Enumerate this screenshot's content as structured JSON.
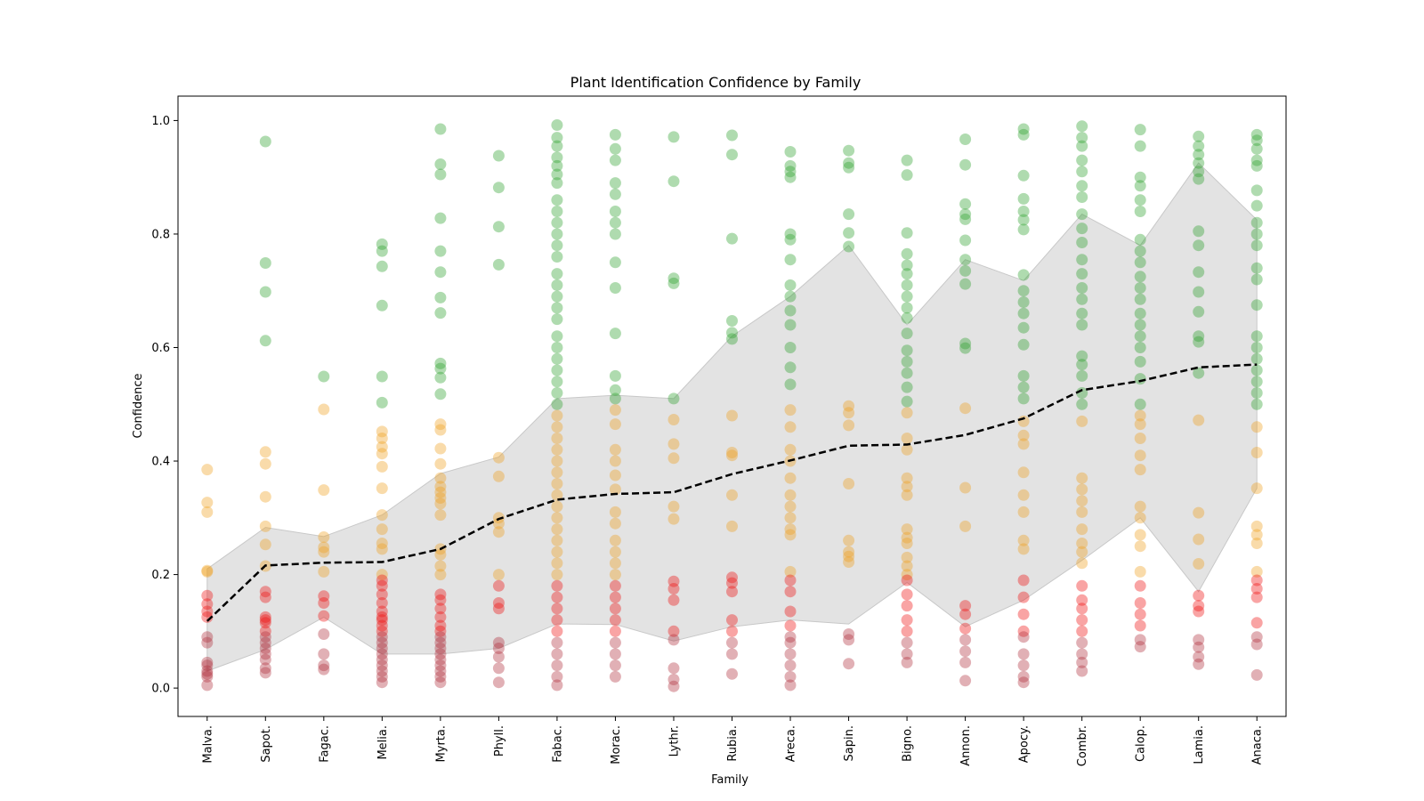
{
  "chart_data": {
    "type": "scatter",
    "title": "Plant Identification Confidence by Family",
    "xlabel": "Family",
    "ylabel": "Confidence",
    "ylim": [
      -0.05,
      1.043
    ],
    "yticks": [
      0.0,
      0.2,
      0.4,
      0.6,
      0.8,
      1.0
    ],
    "ytick_labels": [
      "0.0",
      "0.2",
      "0.4",
      "0.6",
      "0.8",
      "1.0"
    ],
    "categories": [
      "Malva.",
      "Sapot.",
      "Fagac.",
      "Melia.",
      "Myrta.",
      "Phyll.",
      "Fabac.",
      "Morac.",
      "Lythr.",
      "Rubia.",
      "Areca.",
      "Sapin.",
      "Bigno.",
      "Annon.",
      "Apocy.",
      "Combr.",
      "Calop.",
      "Lamia.",
      "Anaca."
    ],
    "grid": false,
    "colors": {
      "high": "#2ca02c",
      "mid": "#f0a020",
      "low": "#ee1111",
      "very_low": "#b0303c",
      "band": "#d9d9d9",
      "mean_line": "#000000"
    },
    "points": [
      [
        0.385,
        0.327,
        0.31,
        0.207,
        0.205,
        0.163,
        0.148,
        0.135,
        0.125,
        0.09,
        0.08,
        0.045,
        0.04,
        0.03,
        0.025,
        0.02,
        0.005
      ],
      [
        0.963,
        0.749,
        0.698,
        0.612,
        0.416,
        0.395,
        0.337,
        0.285,
        0.253,
        0.215,
        0.17,
        0.16,
        0.125,
        0.12,
        0.115,
        0.1,
        0.09,
        0.08,
        0.07,
        0.06,
        0.05,
        0.035,
        0.027
      ],
      [
        0.549,
        0.491,
        0.349,
        0.266,
        0.248,
        0.24,
        0.205,
        0.162,
        0.15,
        0.127,
        0.095,
        0.06,
        0.04,
        0.033
      ],
      [
        0.782,
        0.77,
        0.743,
        0.674,
        0.549,
        0.503,
        0.452,
        0.44,
        0.425,
        0.413,
        0.39,
        0.352,
        0.305,
        0.28,
        0.255,
        0.245,
        0.2,
        0.19,
        0.18,
        0.165,
        0.15,
        0.135,
        0.125,
        0.12,
        0.11,
        0.1,
        0.09,
        0.08,
        0.07,
        0.06,
        0.05,
        0.04,
        0.03,
        0.02,
        0.01
      ],
      [
        0.985,
        0.923,
        0.905,
        0.828,
        0.77,
        0.733,
        0.688,
        0.661,
        0.572,
        0.563,
        0.547,
        0.518,
        0.465,
        0.455,
        0.422,
        0.395,
        0.37,
        0.355,
        0.345,
        0.335,
        0.325,
        0.305,
        0.245,
        0.235,
        0.215,
        0.2,
        0.165,
        0.155,
        0.14,
        0.125,
        0.11,
        0.1,
        0.09,
        0.08,
        0.07,
        0.06,
        0.05,
        0.04,
        0.03,
        0.02,
        0.01
      ],
      [
        0.938,
        0.882,
        0.813,
        0.746,
        0.406,
        0.373,
        0.3,
        0.29,
        0.275,
        0.2,
        0.18,
        0.15,
        0.14,
        0.08,
        0.07,
        0.055,
        0.035,
        0.01
      ],
      [
        0.992,
        0.97,
        0.955,
        0.935,
        0.92,
        0.905,
        0.89,
        0.86,
        0.84,
        0.82,
        0.8,
        0.78,
        0.76,
        0.73,
        0.71,
        0.69,
        0.67,
        0.65,
        0.62,
        0.6,
        0.58,
        0.56,
        0.54,
        0.52,
        0.5,
        0.48,
        0.46,
        0.44,
        0.42,
        0.4,
        0.38,
        0.36,
        0.34,
        0.32,
        0.3,
        0.28,
        0.26,
        0.24,
        0.22,
        0.2,
        0.18,
        0.16,
        0.14,
        0.12,
        0.1,
        0.08,
        0.06,
        0.04,
        0.02,
        0.005
      ],
      [
        0.975,
        0.95,
        0.93,
        0.89,
        0.87,
        0.84,
        0.82,
        0.8,
        0.75,
        0.705,
        0.625,
        0.55,
        0.525,
        0.51,
        0.49,
        0.465,
        0.42,
        0.4,
        0.375,
        0.35,
        0.31,
        0.29,
        0.26,
        0.24,
        0.22,
        0.2,
        0.18,
        0.16,
        0.14,
        0.12,
        0.1,
        0.08,
        0.06,
        0.04,
        0.02
      ],
      [
        0.971,
        0.893,
        0.722,
        0.713,
        0.51,
        0.473,
        0.43,
        0.405,
        0.32,
        0.298,
        0.188,
        0.175,
        0.155,
        0.1,
        0.085,
        0.035,
        0.015,
        0.003
      ],
      [
        0.974,
        0.94,
        0.792,
        0.647,
        0.626,
        0.615,
        0.48,
        0.415,
        0.41,
        0.34,
        0.285,
        0.195,
        0.185,
        0.17,
        0.12,
        0.1,
        0.08,
        0.06,
        0.025
      ],
      [
        0.945,
        0.92,
        0.91,
        0.9,
        0.8,
        0.79,
        0.755,
        0.71,
        0.69,
        0.665,
        0.64,
        0.6,
        0.565,
        0.535,
        0.49,
        0.46,
        0.42,
        0.4,
        0.37,
        0.34,
        0.32,
        0.3,
        0.28,
        0.27,
        0.205,
        0.19,
        0.17,
        0.135,
        0.11,
        0.09,
        0.08,
        0.06,
        0.04,
        0.02,
        0.005
      ],
      [
        0.947,
        0.925,
        0.917,
        0.835,
        0.802,
        0.778,
        0.497,
        0.485,
        0.463,
        0.36,
        0.26,
        0.24,
        0.232,
        0.222,
        0.095,
        0.085,
        0.043
      ],
      [
        0.93,
        0.904,
        0.802,
        0.765,
        0.745,
        0.73,
        0.71,
        0.69,
        0.67,
        0.652,
        0.625,
        0.595,
        0.575,
        0.555,
        0.53,
        0.505,
        0.485,
        0.44,
        0.42,
        0.37,
        0.355,
        0.34,
        0.28,
        0.265,
        0.255,
        0.23,
        0.215,
        0.2,
        0.19,
        0.165,
        0.145,
        0.12,
        0.1,
        0.08,
        0.06,
        0.045
      ],
      [
        0.967,
        0.922,
        0.853,
        0.835,
        0.826,
        0.789,
        0.755,
        0.735,
        0.712,
        0.607,
        0.599,
        0.493,
        0.353,
        0.285,
        0.145,
        0.13,
        0.105,
        0.085,
        0.065,
        0.045,
        0.013
      ],
      [
        0.985,
        0.975,
        0.903,
        0.862,
        0.84,
        0.825,
        0.808,
        0.728,
        0.7,
        0.68,
        0.66,
        0.635,
        0.605,
        0.55,
        0.53,
        0.51,
        0.47,
        0.445,
        0.43,
        0.38,
        0.34,
        0.31,
        0.26,
        0.245,
        0.19,
        0.16,
        0.13,
        0.1,
        0.09,
        0.06,
        0.04,
        0.02,
        0.01
      ],
      [
        0.99,
        0.97,
        0.955,
        0.93,
        0.91,
        0.885,
        0.865,
        0.835,
        0.81,
        0.785,
        0.755,
        0.73,
        0.705,
        0.685,
        0.66,
        0.64,
        0.585,
        0.57,
        0.55,
        0.52,
        0.5,
        0.47,
        0.37,
        0.35,
        0.33,
        0.31,
        0.28,
        0.255,
        0.24,
        0.22,
        0.18,
        0.155,
        0.14,
        0.12,
        0.1,
        0.08,
        0.06,
        0.045,
        0.03
      ],
      [
        0.984,
        0.955,
        0.9,
        0.885,
        0.86,
        0.84,
        0.79,
        0.77,
        0.75,
        0.725,
        0.705,
        0.685,
        0.66,
        0.64,
        0.62,
        0.6,
        0.575,
        0.545,
        0.5,
        0.48,
        0.465,
        0.44,
        0.41,
        0.385,
        0.32,
        0.3,
        0.27,
        0.25,
        0.205,
        0.18,
        0.15,
        0.13,
        0.11,
        0.085,
        0.073
      ],
      [
        0.972,
        0.955,
        0.94,
        0.925,
        0.91,
        0.897,
        0.805,
        0.78,
        0.733,
        0.698,
        0.663,
        0.62,
        0.61,
        0.555,
        0.472,
        0.309,
        0.262,
        0.219,
        0.163,
        0.145,
        0.135,
        0.085,
        0.072,
        0.055,
        0.042
      ],
      [
        0.975,
        0.965,
        0.95,
        0.93,
        0.92,
        0.877,
        0.85,
        0.82,
        0.8,
        0.78,
        0.74,
        0.72,
        0.675,
        0.62,
        0.6,
        0.58,
        0.56,
        0.54,
        0.52,
        0.5,
        0.46,
        0.415,
        0.352,
        0.285,
        0.27,
        0.255,
        0.205,
        0.19,
        0.175,
        0.16,
        0.115,
        0.09,
        0.077,
        0.023
      ]
    ],
    "mean_line": [
      0.118,
      0.216,
      0.221,
      0.222,
      0.245,
      0.298,
      0.332,
      0.342,
      0.345,
      0.377,
      0.401,
      0.427,
      0.429,
      0.446,
      0.475,
      0.525,
      0.541,
      0.565,
      0.57
    ],
    "band_upper": [
      0.21,
      0.283,
      0.267,
      0.305,
      0.378,
      0.407,
      0.51,
      0.516,
      0.51,
      0.62,
      0.69,
      0.78,
      0.64,
      0.755,
      0.718,
      0.835,
      0.78,
      0.925,
      0.825
    ],
    "band_lower": [
      0.03,
      0.068,
      0.125,
      0.06,
      0.06,
      0.07,
      0.113,
      0.112,
      0.083,
      0.108,
      0.12,
      0.113,
      0.186,
      0.108,
      0.155,
      0.225,
      0.3,
      0.17,
      0.352
    ]
  }
}
